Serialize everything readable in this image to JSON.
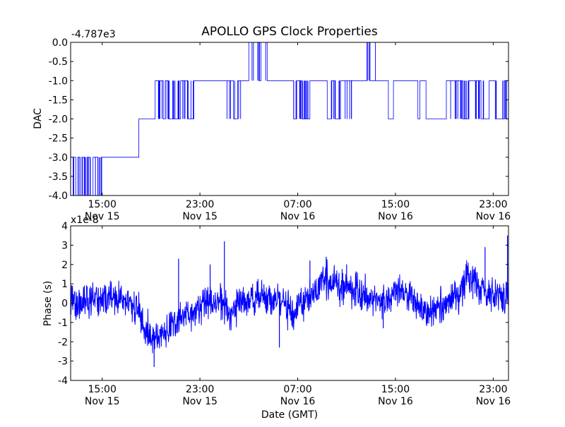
{
  "figure": {
    "title": "APOLLO GPS Clock Properties"
  },
  "chart_data": [
    {
      "type": "line",
      "title": "APOLLO GPS Clock Properties",
      "ylabel": "DAC",
      "xlabel": "",
      "offset_label": "-4.787e3",
      "ylim": [
        -4.0,
        0.0
      ],
      "yticks": [
        "-4.0",
        "-3.5",
        "-3.0",
        "-2.5",
        "-2.0",
        "-1.5",
        "-1.0",
        "-0.5",
        "0.0"
      ],
      "yticks_values": [
        -4.0,
        -3.5,
        -3.0,
        -2.5,
        -2.0,
        -1.5,
        -1.0,
        -0.5,
        0.0
      ],
      "xlim": [
        "2014-11-15 12:25",
        "2014-11-17 00:15"
      ],
      "xticks": [
        {
          "time": "2014-11-15 15:00",
          "label_time": "15:00",
          "label_date": "Nov 15"
        },
        {
          "time": "2014-11-15 23:00",
          "label_time": "23:00",
          "label_date": "Nov 15"
        },
        {
          "time": "2014-11-16 07:00",
          "label_time": "07:00",
          "label_date": "Nov 16"
        },
        {
          "time": "2014-11-16 15:00",
          "label_time": "15:00",
          "label_date": "Nov 16"
        },
        {
          "time": "2014-11-16 23:00",
          "label_time": "23:00",
          "label_date": "Nov 16"
        }
      ],
      "color": "#0000ff",
      "grid": false,
      "series": [
        {
          "x": [
            "2014-11-15 12:25",
            "2014-11-15 12:40",
            "2014-11-15 12:50",
            "2014-11-15 13:00",
            "2014-11-15 13:12",
            "2014-11-15 13:20",
            "2014-11-15 13:35",
            "2014-11-15 13:45",
            "2014-11-15 14:00",
            "2014-11-15 14:15",
            "2014-11-15 14:40",
            "2014-11-15 14:55",
            "2014-11-15 15:00",
            "2014-11-15 18:00",
            "2014-11-15 19:20",
            "2014-11-15 20:00",
            "2014-11-15 20:10",
            "2014-11-15 20:25",
            "2014-11-15 21:25",
            "2014-11-15 22:00",
            "2014-11-15 22:30",
            "2014-11-15 23:20",
            "2014-11-16 00:45",
            "2014-11-16 01:45",
            "2014-11-16 02:05",
            "2014-11-16 03:00",
            "2014-11-16 03:50",
            "2014-11-16 04:00",
            "2014-11-16 04:30",
            "2014-11-16 05:00",
            "2014-11-16 06:40",
            "2014-11-16 06:55",
            "2014-11-16 07:20",
            "2014-11-16 08:00",
            "2014-11-16 08:40",
            "2014-11-16 09:25",
            "2014-11-16 09:45",
            "2014-11-16 10:05",
            "2014-11-16 10:30",
            "2014-11-16 11:30",
            "2014-11-16 12:40",
            "2014-11-16 12:55",
            "2014-11-16 13:30",
            "2014-11-16 14:00",
            "2014-11-16 14:25",
            "2014-11-16 14:50",
            "2014-11-16 16:00",
            "2014-11-16 16:50",
            "2014-11-16 17:00",
            "2014-11-16 17:30",
            "2014-11-16 19:10",
            "2014-11-16 20:30",
            "2014-11-16 21:00",
            "2014-11-16 21:40",
            "2014-11-16 22:00",
            "2014-11-16 22:40",
            "2014-11-16 23:10",
            "2014-11-16 23:55",
            "2014-11-17 00:05"
          ],
          "y": [
            -4.0,
            -3.0,
            -4.0,
            -3.0,
            -4.0,
            -3.0,
            -4.0,
            -3.0,
            -4.0,
            -3.0,
            -4.0,
            -3.0,
            -3.0,
            -2.0,
            -1.0,
            -2.0,
            -1.0,
            -2.0,
            -1.0,
            -2.0,
            -1.0,
            -1.0,
            -1.0,
            -2.0,
            -1.0,
            0.0,
            -1.0,
            0.0,
            -1.0,
            -1.0,
            -2.0,
            -1.0,
            -2.0,
            -1.0,
            -1.0,
            -2.0,
            -1.0,
            -2.0,
            -1.0,
            -1.0,
            0.0,
            -1.0,
            -1.0,
            -1.0,
            -2.0,
            -1.0,
            -1.0,
            -2.0,
            -1.0,
            -2.0,
            -1.0,
            -2.0,
            -1.0,
            -1.0,
            -2.0,
            -1.0,
            -2.0,
            -1.0,
            -1.0
          ]
        }
      ]
    },
    {
      "type": "line",
      "title": "",
      "ylabel": "Phase (s)",
      "xlabel": "Date (GMT)",
      "offset_label": "x1e-8",
      "ylim": [
        -4,
        4
      ],
      "yticks": [
        "-4",
        "-3",
        "-2",
        "-1",
        "0",
        "1",
        "2",
        "3",
        "4"
      ],
      "yticks_values": [
        -4,
        -3,
        -2,
        -1,
        0,
        1,
        2,
        3,
        4
      ],
      "xlim": [
        "2014-11-15 12:25",
        "2014-11-17 00:15"
      ],
      "xticks": [
        {
          "time": "2014-11-15 15:00",
          "label_time": "15:00",
          "label_date": "Nov 15"
        },
        {
          "time": "2014-11-15 23:00",
          "label_time": "23:00",
          "label_date": "Nov 15"
        },
        {
          "time": "2014-11-16 07:00",
          "label_time": "07:00",
          "label_date": "Nov 16"
        },
        {
          "time": "2014-11-16 15:00",
          "label_time": "15:00",
          "label_date": "Nov 16"
        },
        {
          "time": "2014-11-16 23:00",
          "label_time": "23:00",
          "label_date": "Nov 16"
        }
      ],
      "color": "#0000ff",
      "grid": false,
      "series": [
        {
          "x": [
            "2014-11-15 12:25",
            "2014-11-15 13:00",
            "2014-11-15 14:00",
            "2014-11-15 15:00",
            "2014-11-15 16:00",
            "2014-11-15 17:00",
            "2014-11-15 18:00",
            "2014-11-15 18:30",
            "2014-11-15 19:30",
            "2014-11-15 20:30",
            "2014-11-15 21:30",
            "2014-11-15 22:30",
            "2014-11-15 23:30",
            "2014-11-16 00:30",
            "2014-11-16 01:30",
            "2014-11-16 02:30",
            "2014-11-16 03:30",
            "2014-11-16 04:30",
            "2014-11-16 05:30",
            "2014-11-16 06:30",
            "2014-11-16 07:30",
            "2014-11-16 08:30",
            "2014-11-16 09:00",
            "2014-11-16 10:00",
            "2014-11-16 11:00",
            "2014-11-16 12:00",
            "2014-11-16 13:00",
            "2014-11-16 14:00",
            "2014-11-16 15:00",
            "2014-11-16 16:00",
            "2014-11-16 17:00",
            "2014-11-16 18:00",
            "2014-11-16 19:00",
            "2014-11-16 20:00",
            "2014-11-16 21:00",
            "2014-11-16 22:00",
            "2014-11-16 23:00",
            "2014-11-17 00:00",
            "2014-11-17 00:15"
          ],
          "y": [
            0.2,
            -0.1,
            0.1,
            0.2,
            0.3,
            0.0,
            -0.4,
            -1.5,
            -1.8,
            -1.3,
            -0.8,
            -0.4,
            0.0,
            0.1,
            -0.4,
            0.0,
            0.4,
            0.2,
            0.1,
            -0.4,
            0.0,
            0.6,
            1.2,
            1.0,
            0.9,
            0.6,
            0.3,
            0.2,
            0.6,
            0.4,
            -0.3,
            -0.6,
            -0.1,
            0.4,
            1.4,
            0.7,
            0.4,
            0.3,
            0.5
          ],
          "spikes": [
            {
              "x": "2014-11-15 19:15",
              "y": -3.3
            },
            {
              "x": "2014-11-15 21:15",
              "y": 2.3
            },
            {
              "x": "2014-11-15 23:50",
              "y": 2.0
            },
            {
              "x": "2014-11-16 01:00",
              "y": 3.2
            },
            {
              "x": "2014-11-16 05:30",
              "y": -2.3
            },
            {
              "x": "2014-11-16 08:00",
              "y": 2.2
            },
            {
              "x": "2014-11-16 09:20",
              "y": 2.4
            },
            {
              "x": "2014-11-16 11:00",
              "y": 2.0
            },
            {
              "x": "2014-11-16 14:00",
              "y": -1.3
            },
            {
              "x": "2014-11-16 22:20",
              "y": 2.9
            },
            {
              "x": "2014-11-17 00:10",
              "y": 3.5
            }
          ]
        }
      ]
    }
  ]
}
